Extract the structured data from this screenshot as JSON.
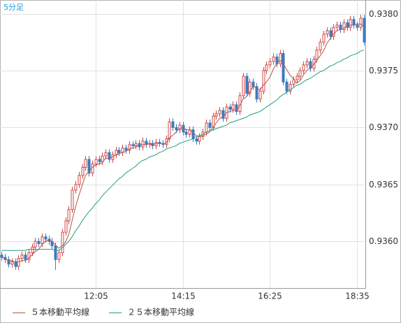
{
  "chart_data": {
    "type": "candlestick",
    "title": "5分足",
    "categories": [
      null,
      null,
      null,
      null,
      null,
      null,
      null,
      null,
      null,
      null,
      null,
      null,
      null,
      null,
      null,
      null,
      null,
      null,
      null,
      null,
      null,
      null,
      null,
      null,
      null,
      null,
      null,
      null,
      "12:05",
      null,
      null,
      null,
      null,
      null,
      null,
      null,
      null,
      null,
      null,
      null,
      null,
      null,
      null,
      null,
      null,
      null,
      null,
      null,
      null,
      null,
      null,
      null,
      null,
      null,
      "14:15",
      null,
      null,
      null,
      null,
      null,
      null,
      null,
      null,
      null,
      null,
      null,
      null,
      null,
      null,
      null,
      null,
      null,
      null,
      null,
      null,
      null,
      null,
      null,
      null,
      null,
      "16:25",
      null,
      null,
      null,
      null,
      null,
      null,
      null,
      null,
      null,
      null,
      null,
      null,
      null,
      null,
      null,
      null,
      null,
      null,
      null,
      null,
      null,
      null,
      null,
      null,
      null,
      "18:35",
      null,
      null
    ],
    "open": [
      0.93588,
      0.93586,
      0.93584,
      0.9358,
      0.93582,
      0.93578,
      0.93585,
      0.93588,
      0.93584,
      0.9359,
      0.93595,
      0.936,
      0.93598,
      0.93604,
      0.93602,
      0.936,
      0.93596,
      0.93584,
      0.9359,
      0.93608,
      0.93618,
      0.93628,
      0.93645,
      0.9365,
      0.93658,
      0.93665,
      0.93672,
      0.9366,
      0.93668,
      0.93672,
      0.9367,
      0.93675,
      0.93678,
      0.93672,
      0.93676,
      0.9368,
      0.93678,
      0.93682,
      0.9368,
      0.93685,
      0.93684,
      0.93686,
      0.93683,
      0.93688,
      0.93685,
      0.93686,
      0.93684,
      0.93687,
      0.93686,
      0.93685,
      0.9369,
      0.93705,
      0.937,
      0.93698,
      0.93702,
      0.93696,
      0.93694,
      0.93698,
      0.9369,
      0.93688,
      0.93692,
      0.93696,
      0.93704,
      0.937,
      0.9371,
      0.93712,
      0.93715,
      0.93708,
      0.93718,
      0.93716,
      0.9372,
      0.93714,
      0.93728,
      0.93745,
      0.9373,
      0.9374,
      0.93736,
      0.93725,
      0.93732,
      0.9375,
      0.93755,
      0.93758,
      0.93762,
      0.93756,
      0.93765,
      0.9374,
      0.93732,
      0.93738,
      0.93742,
      0.93745,
      0.9375,
      0.93755,
      0.93758,
      0.93752,
      0.9376,
      0.93768,
      0.93775,
      0.93782,
      0.93785,
      0.9378,
      0.93788,
      0.9379,
      0.93786,
      0.93792,
      0.93788,
      0.93795,
      0.9379,
      0.93788,
      0.93796
    ],
    "high": [
      0.93591,
      0.93589,
      0.93587,
      0.93585,
      0.93585,
      0.93588,
      0.93591,
      0.93591,
      0.93593,
      0.93598,
      0.93603,
      0.93603,
      0.93607,
      0.93607,
      0.93605,
      0.93603,
      0.93599,
      0.93593,
      0.93611,
      0.93621,
      0.93631,
      0.93648,
      0.93653,
      0.93661,
      0.93668,
      0.93675,
      0.93675,
      0.93671,
      0.93675,
      0.93675,
      0.93678,
      0.93681,
      0.93681,
      0.93679,
      0.93683,
      0.93683,
      0.93685,
      0.93685,
      0.93688,
      0.93688,
      0.93689,
      0.93689,
      0.93691,
      0.93691,
      0.93689,
      0.93689,
      0.9369,
      0.9369,
      0.93689,
      0.93693,
      0.93708,
      0.93708,
      0.93703,
      0.93705,
      0.93705,
      0.93699,
      0.93701,
      0.93701,
      0.93693,
      0.93695,
      0.93699,
      0.93707,
      0.93707,
      0.93713,
      0.93715,
      0.93718,
      0.93718,
      0.93721,
      0.93721,
      0.93723,
      0.93723,
      0.93731,
      0.93748,
      0.93748,
      0.93743,
      0.93743,
      0.93739,
      0.93735,
      0.93753,
      0.93758,
      0.93761,
      0.93765,
      0.93765,
      0.93768,
      0.93768,
      0.93743,
      0.93741,
      0.93745,
      0.93748,
      0.93753,
      0.93758,
      0.93761,
      0.93761,
      0.93763,
      0.93771,
      0.93778,
      0.93785,
      0.93788,
      0.93788,
      0.93791,
      0.93793,
      0.93793,
      0.93795,
      0.93795,
      0.93798,
      0.93798,
      0.93793,
      0.93799,
      0.93799
    ],
    "low": [
      0.93583,
      0.93581,
      0.93577,
      0.93577,
      0.93575,
      0.93575,
      0.93582,
      0.93581,
      0.93581,
      0.93587,
      0.93592,
      0.93595,
      0.93595,
      0.93599,
      0.93597,
      0.93593,
      0.93575,
      0.93581,
      0.93587,
      0.93605,
      0.93615,
      0.93625,
      0.93642,
      0.93647,
      0.93655,
      0.93662,
      0.93657,
      0.93657,
      0.93665,
      0.93667,
      0.93667,
      0.93672,
      0.93669,
      0.93669,
      0.93673,
      0.93675,
      0.93675,
      0.93677,
      0.93677,
      0.93681,
      0.93681,
      0.9368,
      0.9368,
      0.93682,
      0.93682,
      0.93681,
      0.93681,
      0.93683,
      0.93682,
      0.93682,
      0.93687,
      0.93697,
      0.93695,
      0.93695,
      0.93693,
      0.93691,
      0.93691,
      0.93687,
      0.93685,
      0.93685,
      0.93689,
      0.93693,
      0.93697,
      0.93697,
      0.93707,
      0.93709,
      0.93705,
      0.93705,
      0.93713,
      0.93713,
      0.93711,
      0.93711,
      0.93725,
      0.93727,
      0.93727,
      0.93733,
      0.93722,
      0.93722,
      0.93729,
      0.93747,
      0.93752,
      0.93755,
      0.93753,
      0.93753,
      0.93737,
      0.93729,
      0.93729,
      0.93735,
      0.93739,
      0.93742,
      0.93747,
      0.93752,
      0.93749,
      0.93749,
      0.93757,
      0.93765,
      0.93772,
      0.93779,
      0.93777,
      0.93777,
      0.93785,
      0.93783,
      0.93783,
      0.93785,
      0.93785,
      0.93787,
      0.93785,
      0.93785,
      0.93772
    ],
    "close": [
      0.93586,
      0.93584,
      0.9358,
      0.93582,
      0.93578,
      0.93585,
      0.93588,
      0.93584,
      0.9359,
      0.93595,
      0.936,
      0.93598,
      0.93604,
      0.93602,
      0.936,
      0.93596,
      0.93584,
      0.9359,
      0.93608,
      0.93618,
      0.93628,
      0.93645,
      0.9365,
      0.93658,
      0.93665,
      0.93672,
      0.9366,
      0.93668,
      0.93672,
      0.9367,
      0.93675,
      0.93678,
      0.93672,
      0.93676,
      0.9368,
      0.93678,
      0.93682,
      0.9368,
      0.93685,
      0.93684,
      0.93686,
      0.93683,
      0.93688,
      0.93685,
      0.93686,
      0.93684,
      0.93687,
      0.93686,
      0.93685,
      0.9369,
      0.93705,
      0.937,
      0.93698,
      0.93702,
      0.93696,
      0.93694,
      0.93698,
      0.9369,
      0.93688,
      0.93692,
      0.93696,
      0.93704,
      0.937,
      0.9371,
      0.93712,
      0.93715,
      0.93708,
      0.93718,
      0.93716,
      0.9372,
      0.93714,
      0.93728,
      0.93745,
      0.9373,
      0.9374,
      0.93736,
      0.93725,
      0.93732,
      0.9375,
      0.93755,
      0.93758,
      0.93762,
      0.93756,
      0.93765,
      0.9374,
      0.93732,
      0.93738,
      0.93742,
      0.93745,
      0.9375,
      0.93755,
      0.93758,
      0.93752,
      0.9376,
      0.93768,
      0.93775,
      0.93782,
      0.93785,
      0.9378,
      0.93788,
      0.9379,
      0.93786,
      0.93792,
      0.93788,
      0.93795,
      0.9379,
      0.93788,
      0.93796,
      0.93775
    ],
    "up_color": "#d04848",
    "down_color": "#3b7bbf",
    "series": [
      {
        "name": "５本移動平均線",
        "color": "#b8504a",
        "values": [
          0.93586,
          0.93585,
          0.93583,
          0.93583,
          0.93582,
          0.93582,
          0.93583,
          0.93583,
          0.93585,
          0.93588,
          0.93591,
          0.93593,
          0.93597,
          0.936,
          0.93601,
          0.936,
          0.93597,
          0.93594,
          0.93596,
          0.93599,
          0.93606,
          0.93618,
          0.9363,
          0.9364,
          0.93649,
          0.93658,
          0.93661,
          0.93665,
          0.93667,
          0.93668,
          0.93669,
          0.93673,
          0.93673,
          0.93674,
          0.93676,
          0.93677,
          0.93678,
          0.93679,
          0.93681,
          0.93682,
          0.93683,
          0.93684,
          0.93685,
          0.93685,
          0.93686,
          0.93685,
          0.93686,
          0.93686,
          0.93686,
          0.93686,
          0.93691,
          0.93693,
          0.93696,
          0.93699,
          0.937,
          0.93698,
          0.93698,
          0.93696,
          0.93693,
          0.93692,
          0.93693,
          0.93694,
          0.93696,
          0.937,
          0.93704,
          0.93708,
          0.93709,
          0.93713,
          0.93714,
          0.93715,
          0.93715,
          0.93719,
          0.93725,
          0.93727,
          0.93731,
          0.93736,
          0.93735,
          0.93733,
          0.93737,
          0.9374,
          0.93744,
          0.93751,
          0.93756,
          0.93759,
          0.93756,
          0.93751,
          0.93746,
          0.93743,
          0.93739,
          0.93741,
          0.93746,
          0.9375,
          0.93752,
          0.93755,
          0.93759,
          0.93763,
          0.93767,
          0.93774,
          0.93778,
          0.93782,
          0.93785,
          0.93786,
          0.93787,
          0.93789,
          0.9379,
          0.9379,
          0.93791,
          0.93791,
          0.93789
        ]
      },
      {
        "name": "２５本移動平均線",
        "color": "#1f9f7f",
        "values": [
          0.93592,
          0.93592,
          0.93592,
          0.93592,
          0.93592,
          0.93592,
          0.93592,
          0.93592,
          0.93593,
          0.93593,
          0.93593,
          0.93593,
          0.93593,
          0.93593,
          0.93593,
          0.93593,
          0.93592,
          0.93592,
          0.93594,
          0.93597,
          0.936,
          0.93604,
          0.93609,
          0.93613,
          0.93618,
          0.93622,
          0.93626,
          0.93629,
          0.93633,
          0.93636,
          0.9364,
          0.93643,
          0.93646,
          0.93649,
          0.93652,
          0.93655,
          0.93657,
          0.9366,
          0.93662,
          0.93664,
          0.93666,
          0.93669,
          0.93671,
          0.93672,
          0.93674,
          0.93675,
          0.93676,
          0.93678,
          0.93679,
          0.93681,
          0.93682,
          0.93683,
          0.93684,
          0.93686,
          0.93687,
          0.93688,
          0.93689,
          0.9369,
          0.93692,
          0.93693,
          0.93694,
          0.93696,
          0.93697,
          0.93698,
          0.93699,
          0.937,
          0.93701,
          0.93702,
          0.93704,
          0.93705,
          0.93706,
          0.93707,
          0.93708,
          0.93709,
          0.93711,
          0.93712,
          0.93713,
          0.93714,
          0.93716,
          0.93718,
          0.9372,
          0.93722,
          0.93724,
          0.93727,
          0.93729,
          0.93731,
          0.93733,
          0.93735,
          0.93737,
          0.93738,
          0.9374,
          0.93742,
          0.93743,
          0.93745,
          0.93747,
          0.93749,
          0.9375,
          0.93752,
          0.93754,
          0.93755,
          0.93757,
          0.93758,
          0.9376,
          0.93761,
          0.93763,
          0.93764,
          0.93765,
          0.93767,
          0.93768
        ]
      }
    ],
    "ylim": [
      0.93559,
      0.93812
    ],
    "yticks": [
      {
        "value": 0.936,
        "label": "0.9360"
      },
      0.9365,
      {
        "value": 0.937,
        "label": "0.9370"
      },
      0.9375,
      {
        "value": 0.938,
        "label": "0.9380"
      }
    ],
    "grid": true
  }
}
